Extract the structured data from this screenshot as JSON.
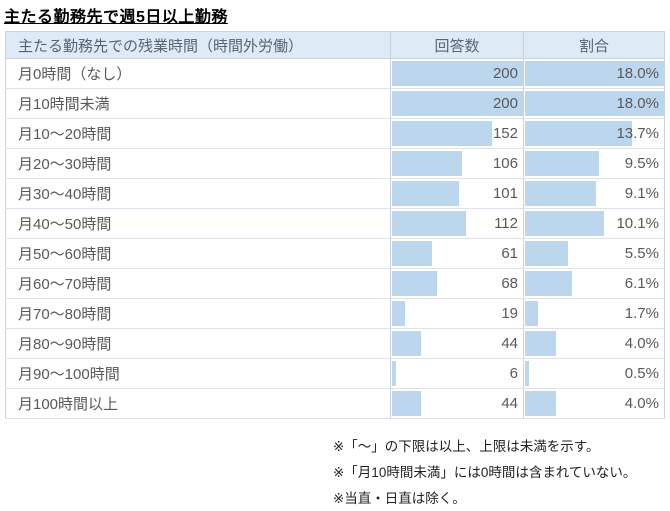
{
  "title": "主たる勤務先で週5日以上勤務",
  "colors": {
    "bar_fill": "#bcd6ee",
    "header_bg": "#deeaf6",
    "border": "#c9d2de",
    "table_text": "#595959"
  },
  "chart_data": {
    "type": "table",
    "title": "主たる勤務先で週5日以上勤務",
    "columns": [
      "主たる勤務先での残業時間（時間外労働）",
      "回答数",
      "割合"
    ],
    "max_count": 200,
    "max_percent": 18.0,
    "bars": "cell data bars proportional to value, light blue",
    "rows": [
      {
        "label": "月0時間（なし）",
        "count": 200,
        "percent": 18.0,
        "percent_label": "18.0%"
      },
      {
        "label": "月10時間未満",
        "count": 200,
        "percent": 18.0,
        "percent_label": "18.0%"
      },
      {
        "label": "月10～20時間",
        "count": 152,
        "percent": 13.7,
        "percent_label": "13.7%"
      },
      {
        "label": "月20～30時間",
        "count": 106,
        "percent": 9.5,
        "percent_label": "9.5%"
      },
      {
        "label": "月30～40時間",
        "count": 101,
        "percent": 9.1,
        "percent_label": "9.1%"
      },
      {
        "label": "月40～50時間",
        "count": 112,
        "percent": 10.1,
        "percent_label": "10.1%"
      },
      {
        "label": "月50～60時間",
        "count": 61,
        "percent": 5.5,
        "percent_label": "5.5%"
      },
      {
        "label": "月60～70時間",
        "count": 68,
        "percent": 6.1,
        "percent_label": "6.1%"
      },
      {
        "label": "月70～80時間",
        "count": 19,
        "percent": 1.7,
        "percent_label": "1.7%"
      },
      {
        "label": "月80～90時間",
        "count": 44,
        "percent": 4.0,
        "percent_label": "4.0%"
      },
      {
        "label": "月90～100時間",
        "count": 6,
        "percent": 0.5,
        "percent_label": "0.5%"
      },
      {
        "label": "月100時間以上",
        "count": 44,
        "percent": 4.0,
        "percent_label": "4.0%"
      }
    ],
    "notes": [
      "※「～」の下限は以上、上限は未満を示す。",
      "※「月10時間未満」には0時間は含まれていない。",
      "※当直・日直は除く。"
    ]
  }
}
